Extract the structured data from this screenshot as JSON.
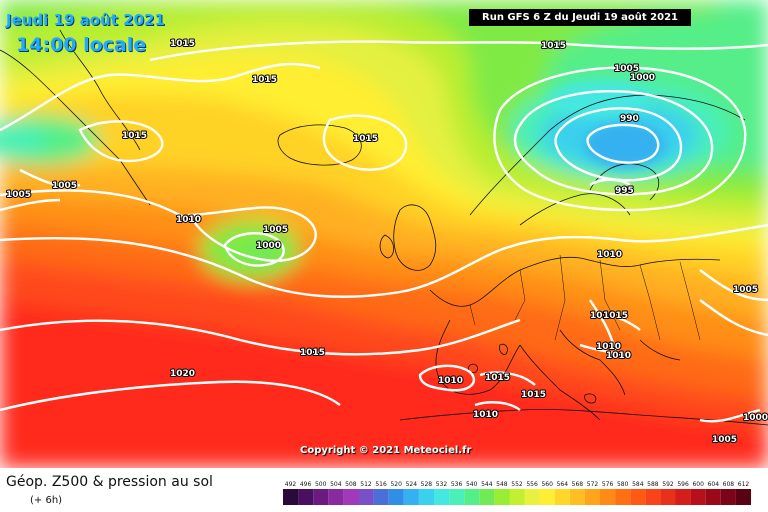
{
  "header": {
    "date_label": "Jeudi 19 août 2021",
    "time_label": "14:00 locale",
    "run_label": "Run GFS 6 Z du Jeudi 19 août 2021"
  },
  "map": {
    "copyright": "Copyright © 2021 Meteociel.fr",
    "isobar_labels": [
      "1015",
      "1015",
      "1015",
      "1015",
      "1015",
      "1005",
      "1005",
      "1000",
      "990",
      "995",
      "1010",
      "1005",
      "1000",
      "1010",
      "1005",
      "1005",
      "1010",
      "1015",
      "1010",
      "1010",
      "1015",
      "1020",
      "1010",
      "1015",
      "1010",
      "1015",
      "1000",
      "1005"
    ]
  },
  "footer": {
    "title": "Géop. Z500 & pression au sol",
    "subtitle": "(+ 6h)"
  },
  "legend": {
    "values": [
      "492",
      "496",
      "500",
      "504",
      "508",
      "512",
      "516",
      "520",
      "524",
      "528",
      "532",
      "536",
      "540",
      "544",
      "548",
      "552",
      "556",
      "560",
      "564",
      "568",
      "572",
      "576",
      "580",
      "584",
      "588",
      "592",
      "596",
      "600",
      "604",
      "608",
      "612"
    ],
    "colors": [
      "#2a0a3a",
      "#4a1060",
      "#6a1a80",
      "#8a2aa0",
      "#a03ab8",
      "#7a50c8",
      "#4a70d8",
      "#2f8fe6",
      "#35b0f0",
      "#3bd0ee",
      "#44e8e0",
      "#4af0b8",
      "#55ee88",
      "#70ea55",
      "#99ee33",
      "#c0f030",
      "#e8f040",
      "#ffee33",
      "#ffd72a",
      "#ffbe22",
      "#ffa41c",
      "#ff8a16",
      "#ff7014",
      "#ff5a14",
      "#f84418",
      "#e8301a",
      "#d41e1a",
      "#b8101a",
      "#9a081a",
      "#7a0418",
      "#5a0212"
    ]
  }
}
